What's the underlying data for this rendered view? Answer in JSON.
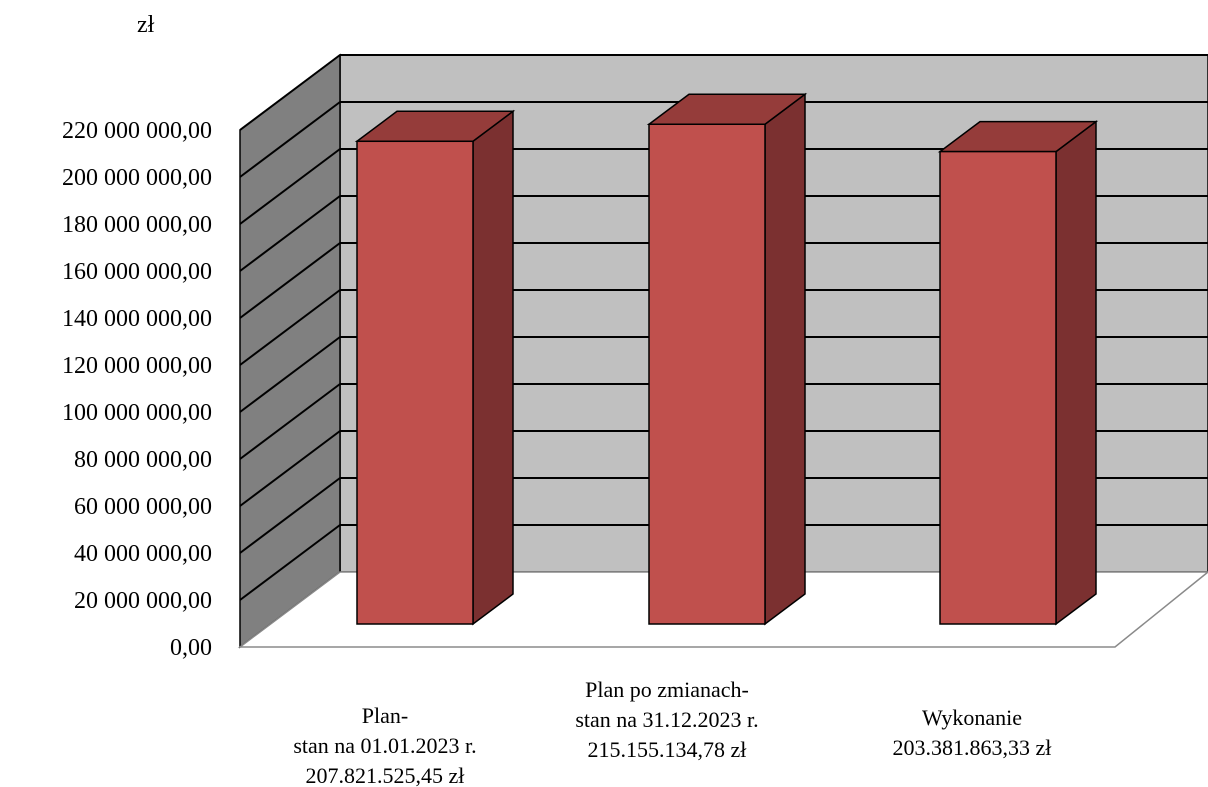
{
  "chart_data": {
    "type": "bar",
    "style": "3d-column",
    "unit_label": "zł",
    "categories": [
      [
        "Plan-",
        "stan na 01.01.2023 r.",
        "207.821.525,45 zł"
      ],
      [
        "Plan po zmianach-",
        "stan na 31.12.2023 r.",
        "215.155.134,78 zł"
      ],
      [
        "Wykonanie",
        "203.381.863,33 zł"
      ]
    ],
    "values": [
      207821525.45,
      215155134.78,
      203381863.33
    ],
    "ylim": [
      0,
      220000000
    ],
    "ytick_step": 20000000,
    "ytick_labels": [
      "0,00",
      "20 000 000,00",
      "40 000 000,00",
      "60 000 000,00",
      "80 000 000,00",
      "100 000 000,00",
      "120 000 000,00",
      "140 000 000,00",
      "160 000 000,00",
      "180 000 000,00",
      "200 000 000,00",
      "220 000 000,00"
    ],
    "grid": true,
    "legend": "none",
    "colors": {
      "bar_front": "#c0504d",
      "bar_side": "#7b3030",
      "bar_top": "#953c3a",
      "back_wall": "#c0c0c0",
      "side_wall": "#808080",
      "floor": "#ffffff"
    }
  }
}
